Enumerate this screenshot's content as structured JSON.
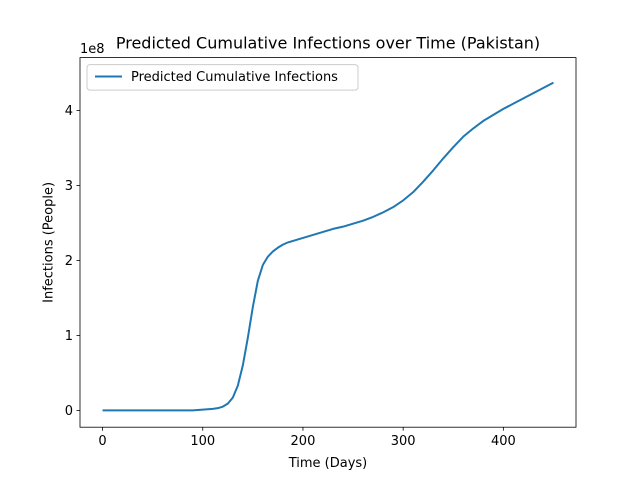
{
  "chart_data": {
    "type": "line",
    "title": "Predicted Cumulative Infections over Time (Pakistan)",
    "xlabel": "Time (Days)",
    "ylabel": "Infections (People)",
    "y_offset_label": "1e8",
    "xlim": [
      -22.5,
      472.5
    ],
    "ylim": [
      -0.224,
      4.704
    ],
    "x_ticks": [
      0,
      100,
      200,
      300,
      400
    ],
    "x_tick_labels": [
      "0",
      "100",
      "200",
      "300",
      "400"
    ],
    "y_ticks": [
      0,
      1,
      2,
      3,
      4
    ],
    "y_tick_labels": [
      "0",
      "1",
      "2",
      "3",
      "4"
    ],
    "grid": false,
    "legend_position": "upper-left",
    "series": [
      {
        "name": "Predicted Cumulative Infections",
        "color": "#1f77b4",
        "x": [
          0,
          20,
          40,
          60,
          80,
          90,
          100,
          105,
          110,
          115,
          120,
          125,
          130,
          135,
          140,
          145,
          150,
          155,
          160,
          165,
          170,
          175,
          180,
          185,
          190,
          200,
          210,
          220,
          230,
          240,
          250,
          260,
          270,
          280,
          290,
          300,
          310,
          320,
          330,
          340,
          350,
          360,
          370,
          380,
          390,
          400,
          410,
          420,
          430,
          440,
          450
        ],
        "y": [
          0.0,
          0.0,
          0.0,
          0.0,
          0.0,
          0.0,
          0.01,
          0.015,
          0.02,
          0.03,
          0.05,
          0.09,
          0.17,
          0.33,
          0.6,
          0.97,
          1.38,
          1.73,
          1.94,
          2.05,
          2.12,
          2.17,
          2.21,
          2.24,
          2.26,
          2.3,
          2.34,
          2.38,
          2.42,
          2.45,
          2.49,
          2.53,
          2.58,
          2.64,
          2.71,
          2.8,
          2.91,
          3.05,
          3.2,
          3.36,
          3.51,
          3.65,
          3.76,
          3.86,
          3.94,
          4.02,
          4.09,
          4.16,
          4.23,
          4.3,
          4.37
        ]
      }
    ]
  }
}
